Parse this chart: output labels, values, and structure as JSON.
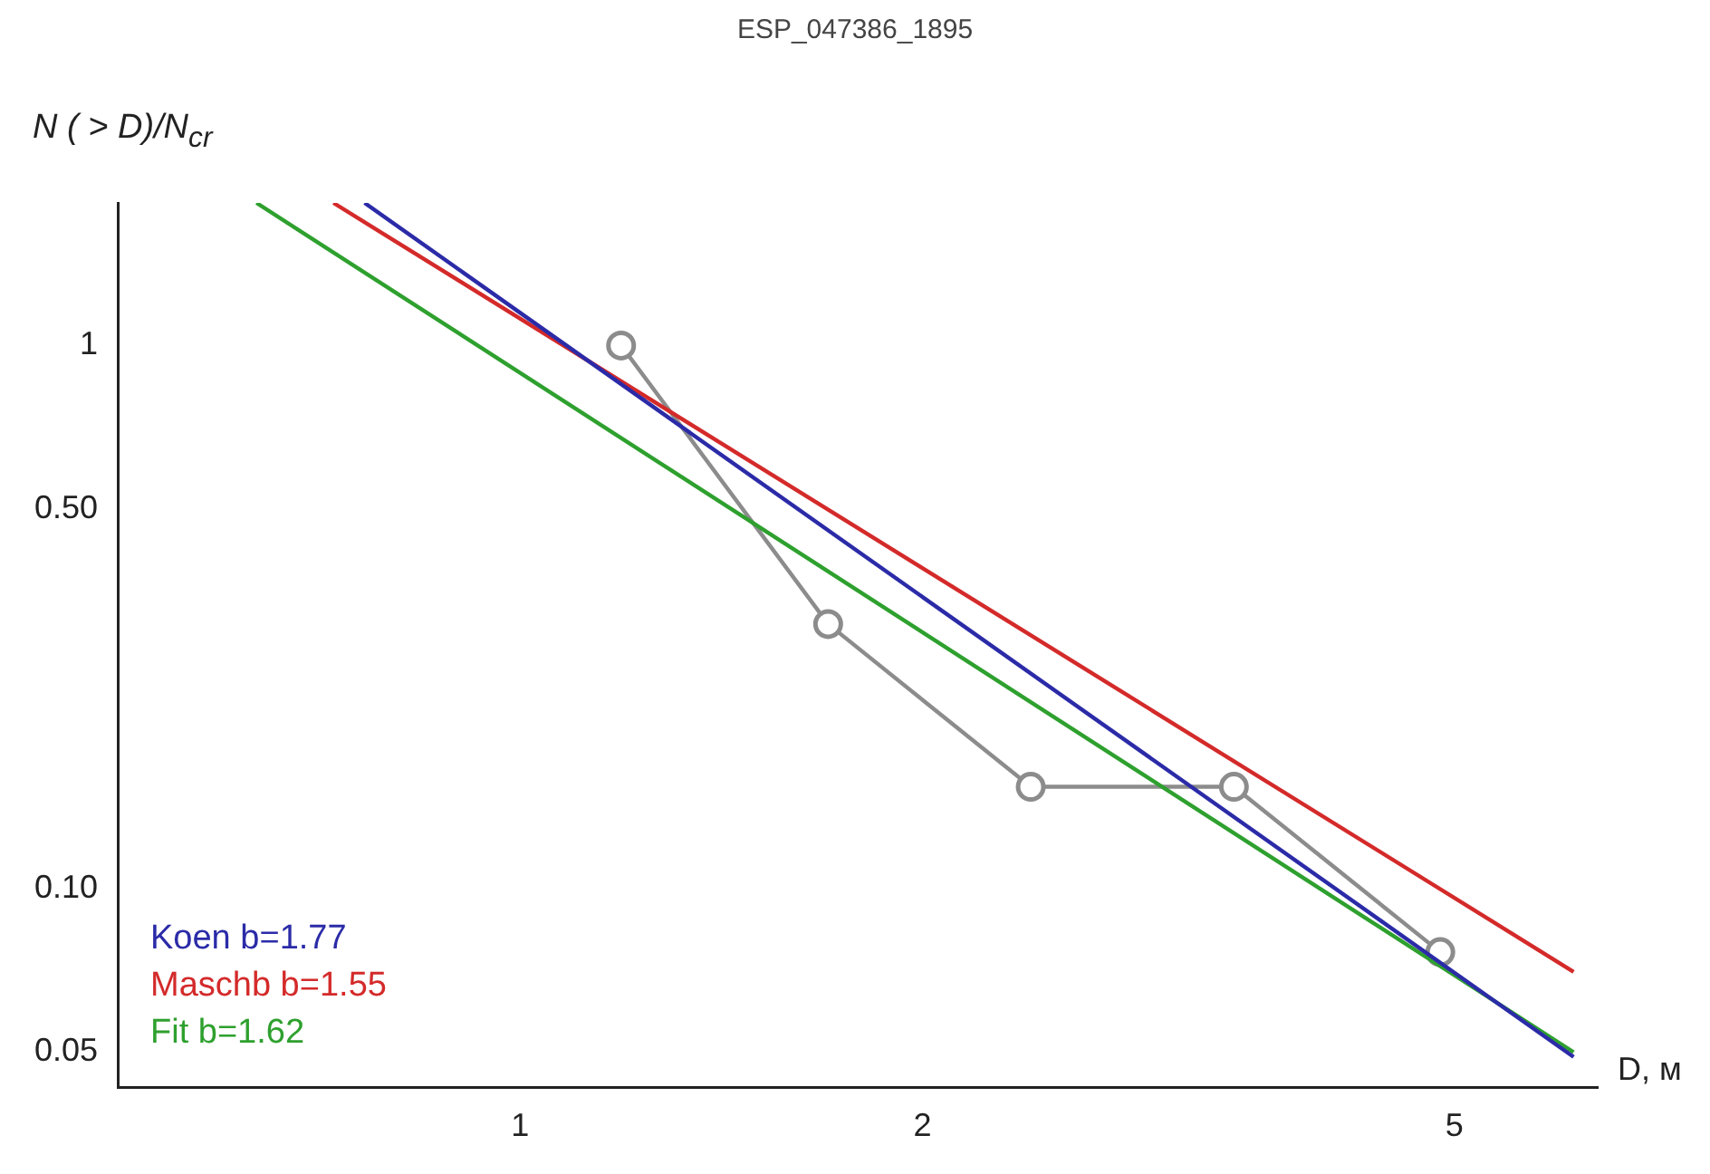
{
  "chart_data": {
    "type": "line",
    "title": "ESP_047386_1895",
    "xlabel": "D, м",
    "ylabel": "N ( > D)/N$_{cr}$",
    "log": "xy",
    "grid": false,
    "legend": "bottom left",
    "xlim": [
      0.5,
      6.4
    ],
    "ylim": [
      0.043,
      1.83
    ],
    "xticks": [
      1,
      2,
      5
    ],
    "yticks": [
      0.05,
      {
        "value": 0.1,
        "label": "0.10"
      },
      {
        "value": 0.5,
        "label": "0.50"
      },
      1
    ],
    "series": [
      {
        "name": "Koen b=1.77",
        "color": "#2b2ba8",
        "x": [
          0.765,
          6.14
        ],
        "values": [
          1.83,
          0.049
        ],
        "marker": "none"
      },
      {
        "name": "Maschb b=1.55",
        "color": "#d42a2a",
        "x": [
          0.725,
          6.14
        ],
        "values": [
          1.83,
          0.0703
        ],
        "marker": "none"
      },
      {
        "name": "Fit b=1.62",
        "color": "#2ea02e",
        "x": [
          0.635,
          6.14
        ],
        "values": [
          1.83,
          0.05
        ],
        "marker": "none"
      },
      {
        "color": "#8c8c8c",
        "x": [
          1.19,
          1.7,
          2.41,
          3.42,
          4.88
        ],
        "values": [
          1,
          0.307,
          0.154,
          0.154,
          0.0764
        ],
        "marker": "circle"
      }
    ]
  }
}
